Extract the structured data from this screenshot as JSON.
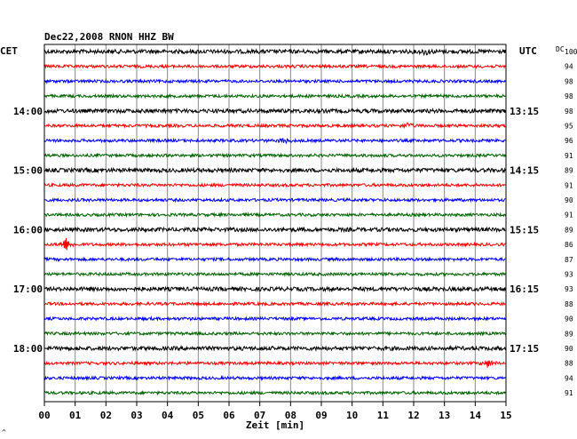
{
  "chart_data": {
    "type": "line",
    "title": "Dec22,2008   RNON HHZ BW",
    "left_axis_label": "CET",
    "right_axis_label": "UTC",
    "right_extra_label": "DC",
    "xlabel": "Zeit [min]",
    "xlim": [
      0,
      15
    ],
    "x_ticks": [
      "00",
      "01",
      "02",
      "03",
      "04",
      "05",
      "06",
      "07",
      "08",
      "09",
      "10",
      "11",
      "12",
      "13",
      "14",
      "15"
    ],
    "left_hour_labels": [
      {
        "trace": 4,
        "label": "14:00"
      },
      {
        "trace": 8,
        "label": "15:00"
      },
      {
        "trace": 12,
        "label": "16:00"
      },
      {
        "trace": 16,
        "label": "17:00"
      },
      {
        "trace": 20,
        "label": "18:00"
      }
    ],
    "right_hour_labels": [
      {
        "trace": 4,
        "label": "13:15"
      },
      {
        "trace": 8,
        "label": "14:15"
      },
      {
        "trace": 12,
        "label": "15:15"
      },
      {
        "trace": 16,
        "label": "16:15"
      },
      {
        "trace": 20,
        "label": "17:15"
      }
    ],
    "trace_colors": [
      "#000000",
      "#ff0000",
      "#0000ff",
      "#006400"
    ],
    "trace_count": 24,
    "dc_values": [
      "100",
      "94",
      "98",
      "98",
      "98",
      "95",
      "96",
      "91",
      "89",
      "91",
      "90",
      "91",
      "89",
      "86",
      "87",
      "93",
      "93",
      "88",
      "90",
      "89",
      "90",
      "88",
      "94",
      "91"
    ],
    "events": [
      {
        "trace": 13,
        "minute": 0.7,
        "amplitude": 7
      },
      {
        "trace": 21,
        "minute": 14.4,
        "amplitude": 4
      },
      {
        "trace": 5,
        "minute": 11.8,
        "amplitude": 3
      },
      {
        "trace": 6,
        "minute": 7.8,
        "amplitude": 3
      },
      {
        "trace": 0,
        "minute": 12.4,
        "amplitude": 3
      }
    ],
    "grid": true,
    "footer_mark": "^"
  }
}
